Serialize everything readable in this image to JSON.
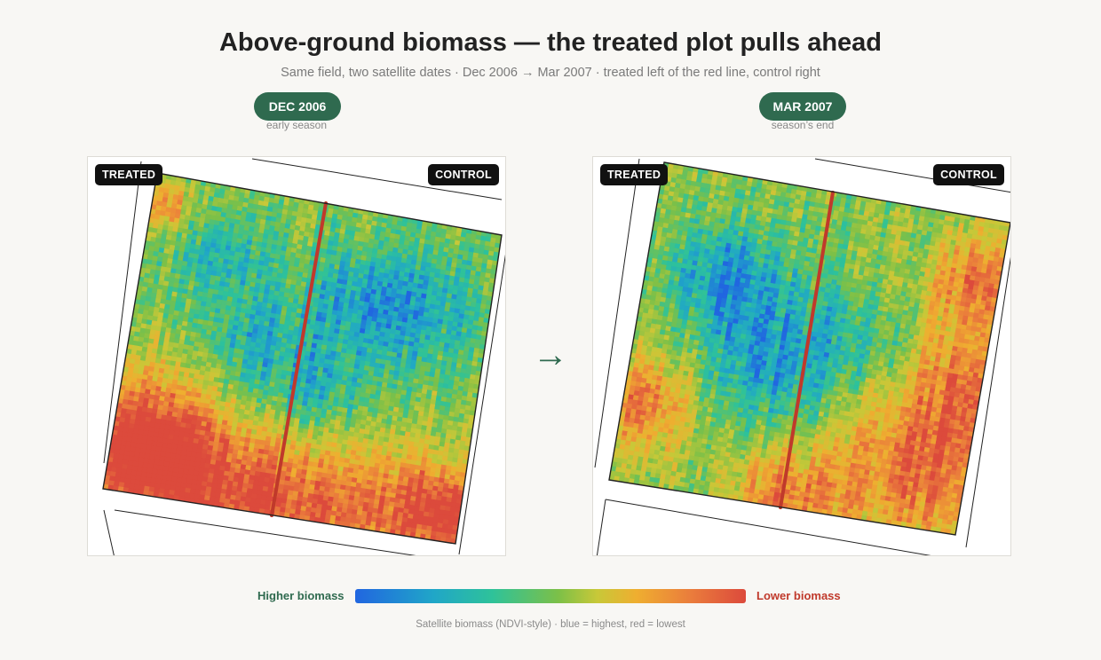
{
  "header": {
    "title": "Above-ground biomass — the treated plot pulls ahead",
    "subtitle": "Same field, two satellite dates · Dec 2006 → Mar 2007 · treated left of the red line, control right"
  },
  "panels": [
    {
      "date": "DEC 2006",
      "note": "early season",
      "left_tag": "TREATED",
      "right_tag": "CONTROL",
      "seed": 11,
      "blue_spots": [
        [
          0.22,
          0.22,
          0.14
        ],
        [
          0.35,
          0.48,
          0.16
        ],
        [
          0.8,
          0.28,
          0.2
        ],
        [
          0.62,
          0.3,
          0.18
        ],
        [
          0.55,
          0.6,
          0.15
        ]
      ],
      "red_spots": [
        [
          0.06,
          0.82,
          0.22
        ],
        [
          0.15,
          0.92,
          0.25
        ],
        [
          0.8,
          0.95,
          0.25
        ],
        [
          0.45,
          0.98,
          0.22
        ],
        [
          0.97,
          0.9,
          0.12
        ],
        [
          0.03,
          0.1,
          0.08
        ]
      ]
    },
    {
      "date": "MAR 2007",
      "note": "season’s end",
      "left_tag": "TREATED",
      "right_tag": "CONTROL",
      "seed": 29,
      "blue_spots": [
        [
          0.32,
          0.4,
          0.2
        ],
        [
          0.4,
          0.6,
          0.18
        ],
        [
          0.65,
          0.45,
          0.16
        ],
        [
          0.2,
          0.3,
          0.14
        ]
      ],
      "red_spots": [
        [
          0.95,
          0.55,
          0.22
        ],
        [
          0.85,
          0.85,
          0.22
        ],
        [
          0.95,
          0.2,
          0.15
        ],
        [
          0.05,
          0.75,
          0.15
        ],
        [
          0.5,
          0.96,
          0.15
        ]
      ]
    }
  ],
  "legend": {
    "high_label": "Higher biomass",
    "low_label": "Lower biomass",
    "caption": "Satellite biomass (NDVI-style) · blue = highest, red = lowest",
    "colors": [
      "#2166e0",
      "#20a6c8",
      "#2ec29a",
      "#7cc048",
      "#c8c838",
      "#efae30",
      "#ea7c3c",
      "#dc4a3c"
    ]
  },
  "arrow_glyph": "→"
}
